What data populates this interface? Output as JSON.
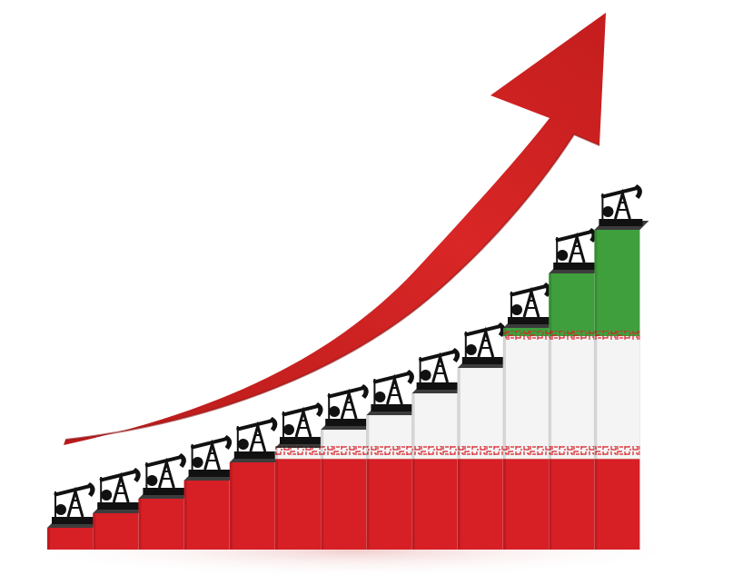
{
  "scene": {
    "description_tag": "rising-bar-staircase-with-arrow",
    "colors": {
      "flag_green": "#3f9f3c",
      "flag_white": "#f4f4f4",
      "flag_red": "#d71f26",
      "arrow_red": "#cc1f1f",
      "arrow_dark": "#8e1212",
      "pumpjack": "#111111",
      "shadow": "#f2d6d6"
    },
    "icons": [
      "pumpjack-icon",
      "rising-arrow-icon"
    ],
    "bars": [
      {
        "level": 0.06
      },
      {
        "level": 0.1
      },
      {
        "level": 0.14
      },
      {
        "level": 0.19
      },
      {
        "level": 0.24
      },
      {
        "level": 0.28
      },
      {
        "level": 0.33
      },
      {
        "level": 0.37
      },
      {
        "level": 0.43
      },
      {
        "level": 0.5
      },
      {
        "level": 0.61
      },
      {
        "level": 0.76
      },
      {
        "level": 0.88
      }
    ]
  }
}
